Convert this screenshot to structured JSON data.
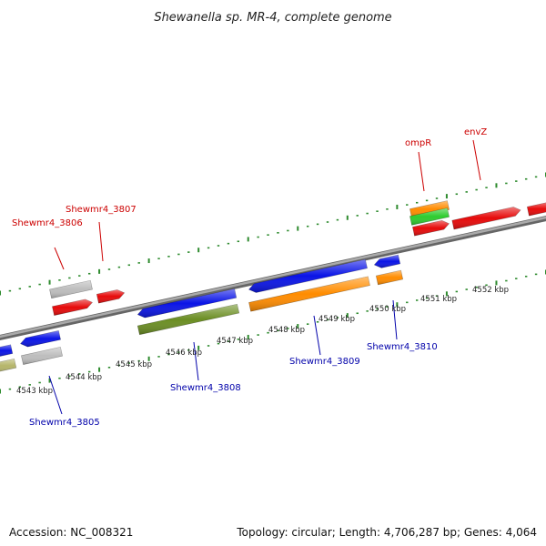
{
  "title": "Shewanella sp. MR-4, complete genome",
  "footer": {
    "accession": "Accession: NC_008321",
    "summary": "Topology: circular; Length: 4,706,287 bp; Genes: 4,064"
  },
  "colors": {
    "backbone": "#888888",
    "tick": "#2e8b2e",
    "label_forward": "#cc0000",
    "label_reverse": "#0000aa",
    "blue": "#0a14e6",
    "red": "#e60a0a",
    "orange": "#ff8c00",
    "green": "#2ecc2e",
    "olive": "#6b8e23",
    "gray": "#bdbdbd",
    "khaki": "#b5b56a"
  },
  "kbp_labels": [
    "4543 kbp",
    "4544 kbp",
    "4545 kbp",
    "4546 kbp",
    "4547 kbp",
    "4548 kbp",
    "4549 kbp",
    "4550 kbp",
    "4551 kbp",
    "4552 kbp"
  ],
  "gene_labels": [
    {
      "id": "Shewmr4_3805",
      "text": "Shewmr4_3805",
      "strand": "reverse"
    },
    {
      "id": "Shewmr4_3806",
      "text": "Shewmr4_3806",
      "strand": "forward"
    },
    {
      "id": "Shewmr4_3807",
      "text": "Shewmr4_3807",
      "strand": "forward"
    },
    {
      "id": "Shewmr4_3808",
      "text": "Shewmr4_3808",
      "strand": "reverse"
    },
    {
      "id": "Shewmr4_3809",
      "text": "Shewmr4_3809",
      "strand": "reverse"
    },
    {
      "id": "Shewmr4_3810",
      "text": "Shewmr4_3810",
      "strand": "reverse"
    },
    {
      "id": "ompR",
      "text": "ompR",
      "strand": "forward"
    },
    {
      "id": "envZ",
      "text": "envZ",
      "strand": "forward"
    }
  ]
}
